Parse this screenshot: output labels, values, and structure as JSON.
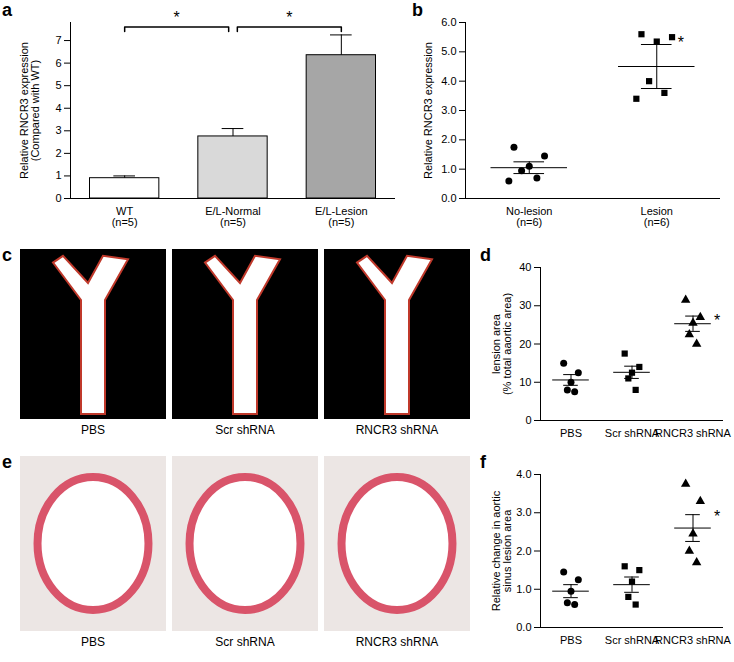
{
  "chart_data": [
    {
      "panel": "a",
      "type": "bar",
      "categories": [
        "WT\n(n=5)",
        "E/L-Normal\n(n=5)",
        "E/L-Lesion\n(n=5)"
      ],
      "values": [
        0.9,
        2.75,
        6.35
      ],
      "error": [
        0.1,
        0.35,
        0.9
      ],
      "colors": [
        "#ffffff",
        "#d9d9d9",
        "#a6a6a6"
      ],
      "y_label": "Relative RNCR3 expression\n(Compared with WT)",
      "ylim": [
        0,
        7.8
      ],
      "yticks": [
        0,
        1,
        2,
        3,
        4,
        5,
        6,
        7
      ],
      "significance": [
        {
          "from": 0,
          "to": 1,
          "y": 7.6,
          "label": "*"
        },
        {
          "from": 1,
          "to": 2,
          "y": 7.6,
          "label": "*"
        }
      ]
    },
    {
      "panel": "b",
      "type": "scatter",
      "y_label": "Relative RNCR3 expression",
      "ylim": [
        0,
        6
      ],
      "yticks": [
        0,
        1,
        2,
        3,
        4,
        5,
        6
      ],
      "series": [
        {
          "name": "No-lesion\n(n=6)",
          "marker": "circle",
          "color": "#000000",
          "values": [
            1.75,
            1.45,
            1.1,
            0.95,
            0.7,
            0.6
          ],
          "mean": 1.05,
          "error": 0.2
        },
        {
          "name": "Lesion\n(n=6)",
          "marker": "square",
          "color": "#000000",
          "values": [
            5.6,
            5.5,
            5.35,
            4.0,
            3.6,
            3.4
          ],
          "mean": 4.5,
          "error": 0.75
        }
      ],
      "annotations": [
        {
          "text": "*",
          "x": "Lesion\n(n=6)",
          "y": 5.3
        }
      ]
    },
    {
      "panel": "c",
      "type": "image",
      "captions": [
        "PBS",
        "Scr shRNA",
        "RNCR3 shRNA"
      ],
      "color": "#000000"
    },
    {
      "panel": "d",
      "type": "scatter",
      "y_label": "lension area\n(% total aaortic area)",
      "ylim": [
        0,
        40
      ],
      "yticks": [
        0,
        10,
        20,
        30,
        40
      ],
      "series": [
        {
          "name": "PBS",
          "marker": "circle",
          "color": "#000000",
          "values": [
            15,
            12.5,
            10,
            8,
            7.5
          ],
          "mean": 10.6,
          "error": 1.4
        },
        {
          "name": "Scr shRNA",
          "marker": "square",
          "color": "#000000",
          "values": [
            17.5,
            14,
            12.5,
            11,
            8
          ],
          "mean": 12.6,
          "error": 1.6
        },
        {
          "name": "RNCR3 shRNA",
          "marker": "triangle",
          "color": "#000000",
          "values": [
            31.5,
            27,
            25.5,
            22.5,
            20
          ],
          "mean": 25.3,
          "error": 2
        }
      ],
      "annotations": [
        {
          "text": "*",
          "x": "RNCR3 shRNA",
          "y": 26
        }
      ]
    },
    {
      "panel": "e",
      "type": "image",
      "captions": [
        "PBS",
        "Scr shRNA",
        "RNCR3 shRNA"
      ],
      "color": "#ece6e4"
    },
    {
      "panel": "f",
      "type": "scatter",
      "y_label": "Relative change in aortic\nsinus lesion area",
      "ylim": [
        0,
        4
      ],
      "yticks": [
        0,
        1,
        2,
        3,
        4
      ],
      "series": [
        {
          "name": "PBS",
          "marker": "circle",
          "color": "#000000",
          "values": [
            1.45,
            1.25,
            0.95,
            0.65,
            0.6
          ],
          "mean": 0.95,
          "error": 0.17
        },
        {
          "name": "Scr shRNA",
          "marker": "square",
          "color": "#000000",
          "values": [
            1.6,
            1.5,
            1.2,
            0.8,
            0.6
          ],
          "mean": 1.12,
          "error": 0.2
        },
        {
          "name": "RNCR3 shRNA",
          "marker": "triangle",
          "color": "#000000",
          "values": [
            3.75,
            3.3,
            2.45,
            2.0,
            1.7
          ],
          "mean": 2.6,
          "error": 0.35
        }
      ],
      "annotations": [
        {
          "text": "*",
          "x": "RNCR3 shRNA",
          "y": 2.9
        }
      ]
    }
  ]
}
